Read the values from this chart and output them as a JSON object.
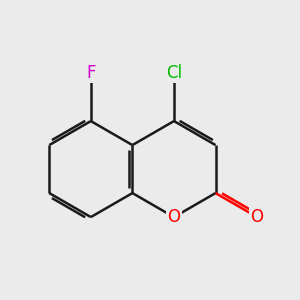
{
  "bg_color": "#ebebeb",
  "bond_color": "#1a1a1a",
  "bond_width": 1.8,
  "atom_colors": {
    "O": "#ff0000",
    "Cl": "#00bb00",
    "F": "#cc00cc"
  },
  "font_size": 12
}
